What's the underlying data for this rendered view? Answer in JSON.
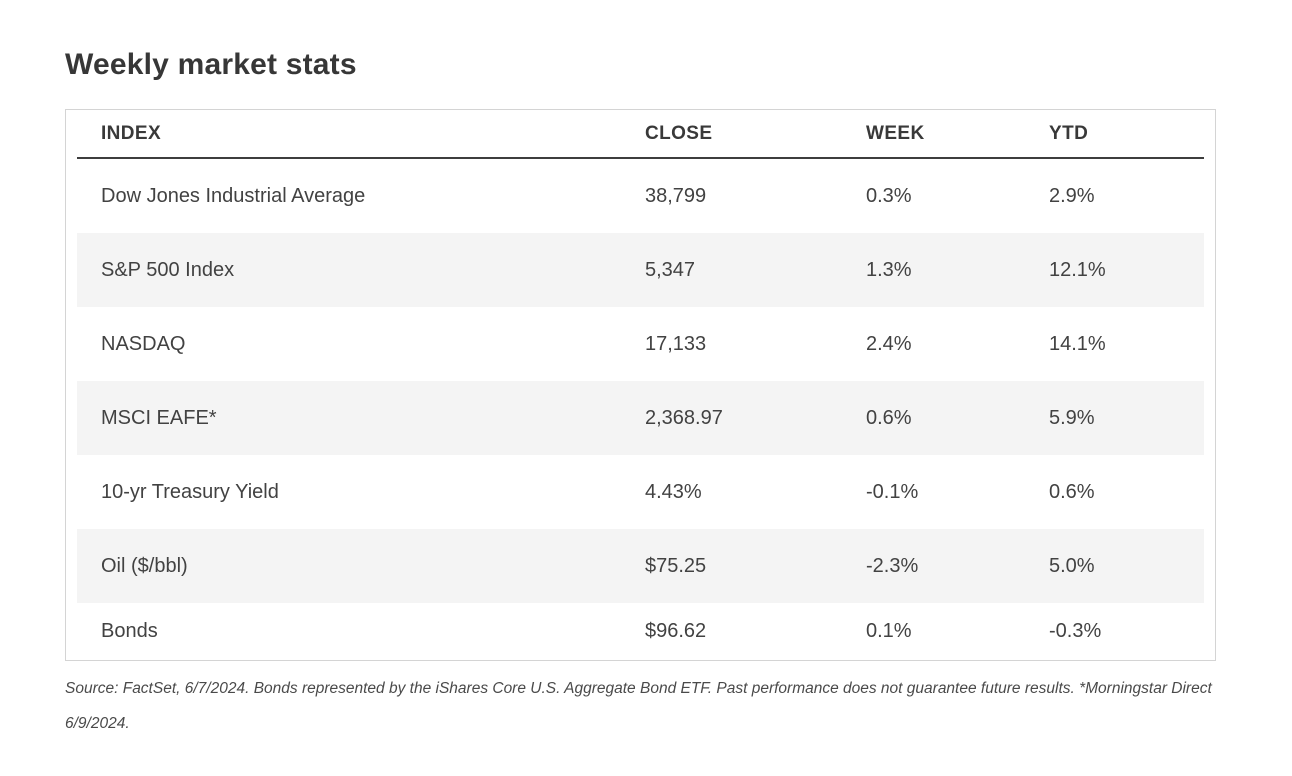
{
  "title": "Weekly market stats",
  "table": {
    "columns": [
      "INDEX",
      "CLOSE",
      "WEEK",
      "YTD"
    ],
    "rows": [
      {
        "index": "Dow Jones Industrial Average",
        "close": "38,799",
        "week": "0.3%",
        "ytd": "2.9%"
      },
      {
        "index": "S&P 500 Index",
        "close": "5,347",
        "week": "1.3%",
        "ytd": "12.1%"
      },
      {
        "index": "NASDAQ",
        "close": "17,133",
        "week": "2.4%",
        "ytd": "14.1%"
      },
      {
        "index": "MSCI EAFE*",
        "close": "2,368.97",
        "week": "0.6%",
        "ytd": "5.9%"
      },
      {
        "index": "10-yr Treasury Yield",
        "close": "4.43%",
        "week": "-0.1%",
        "ytd": "0.6%"
      },
      {
        "index": "Oil ($/bbl)",
        "close": "$75.25",
        "week": "-2.3%",
        "ytd": "5.0%"
      },
      {
        "index": "Bonds",
        "close": "$96.62",
        "week": "0.1%",
        "ytd": "-0.3%"
      }
    ]
  },
  "footnote": "Source: FactSet, 6/7/2024. Bonds represented by the iShares Core U.S. Aggregate Bond ETF. Past performance does not guarantee future results. *Morningstar Direct 6/9/2024.",
  "colors": {
    "text": "#424242",
    "heading": "#373737",
    "stripe": "#f4f4f4",
    "table_border": "#d4d4d4",
    "header_rule": "#3d3d3d"
  },
  "chart_data": {
    "type": "table",
    "title": "Weekly market stats",
    "columns": [
      "INDEX",
      "CLOSE",
      "WEEK",
      "YTD"
    ],
    "rows": [
      [
        "Dow Jones Industrial Average",
        "38,799",
        "0.3%",
        "2.9%"
      ],
      [
        "S&P 500 Index",
        "5,347",
        "1.3%",
        "12.1%"
      ],
      [
        "NASDAQ",
        "17,133",
        "2.4%",
        "14.1%"
      ],
      [
        "MSCI EAFE*",
        "2,368.97",
        "0.6%",
        "5.9%"
      ],
      [
        "10-yr Treasury Yield",
        "4.43%",
        "-0.1%",
        "0.6%"
      ],
      [
        "Oil ($/bbl)",
        "$75.25",
        "-2.3%",
        "5.0%"
      ],
      [
        "Bonds",
        "$96.62",
        "0.1%",
        "-0.3%"
      ]
    ],
    "footnote": "Source: FactSet, 6/7/2024. Bonds represented by the iShares Core U.S. Aggregate Bond ETF. Past performance does not guarantee future results. *Morningstar Direct 6/9/2024.",
    "layout_hints": {
      "striped_rows": [
        1,
        3,
        5
      ],
      "column_alignment": "left",
      "grid": "off"
    }
  }
}
